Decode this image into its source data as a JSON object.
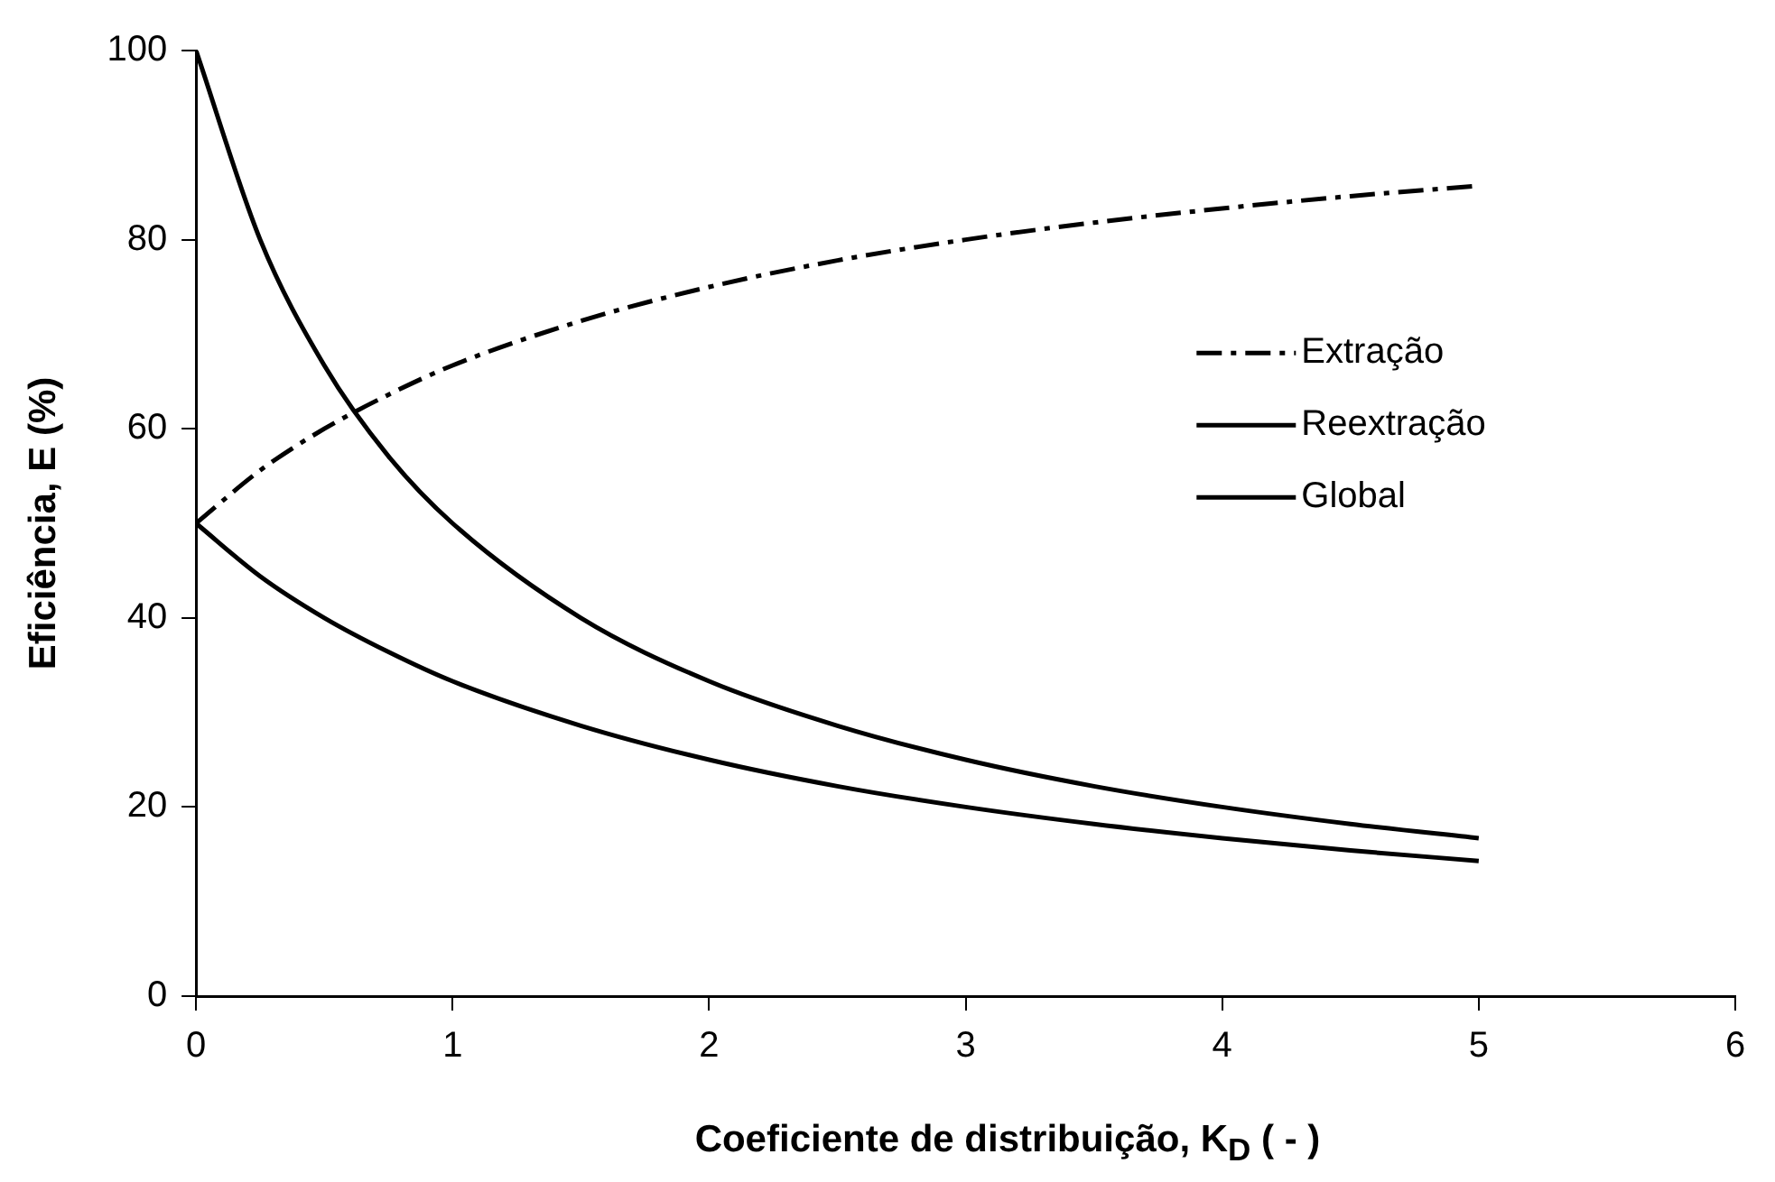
{
  "chart_data": {
    "type": "line",
    "xlabel": "Coeficiente de distribuição, K$_{D}$ ( - )",
    "ylabel": "Eficiência, E (%)",
    "x": [
      0,
      0.25,
      0.5,
      0.75,
      1,
      1.5,
      2,
      2.5,
      3,
      3.5,
      4,
      4.5,
      5
    ],
    "series": [
      {
        "name": "Extração",
        "color": "#000000",
        "line_style": "dashed",
        "values": [
          50,
          55.6,
          60,
          63.6,
          66.7,
          71.4,
          75,
          77.8,
          80,
          81.8,
          83.3,
          84.6,
          85.7
        ]
      },
      {
        "name": "Reextração",
        "color": "#000000",
        "line_style": "solid",
        "values": [
          100,
          80,
          66.7,
          57.1,
          50,
          40,
          33.3,
          28.6,
          25,
          22.2,
          20,
          18.2,
          16.7
        ]
      },
      {
        "name": "Global",
        "color": "#000000",
        "line_style": "solid",
        "values": [
          50,
          44.4,
          40,
          36.4,
          33.3,
          28.6,
          25,
          22.2,
          20,
          18.2,
          16.7,
          15.4,
          14.3
        ]
      }
    ],
    "xlim": [
      0,
      6
    ],
    "xticks": [
      0,
      1,
      2,
      3,
      4,
      5,
      6
    ],
    "ylim": [
      0,
      100
    ],
    "yticks": [
      0,
      20,
      40,
      60,
      80,
      100
    ],
    "grid": false,
    "legend": "right",
    "marker": "none"
  }
}
